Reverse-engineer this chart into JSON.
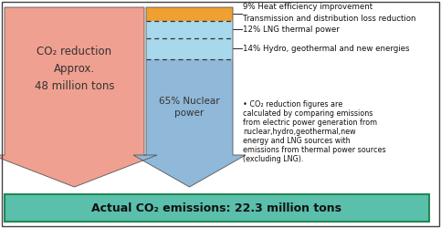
{
  "arrow_left_color": "#F0A090",
  "arrow_right_color": "#90B8D8",
  "bar_heat_color": "#F0A030",
  "bar_hydro_lng_color": "#A8D8EC",
  "bar_nuclear_color": "#90B8D8",
  "bottom_box_facecolor": "#5ABFAB",
  "bottom_box_edgecolor": "#228855",
  "left_arrow_text": "CO₂ reduction\nApprox.\n48 million tons",
  "nuclear_label": "65% Nuclear\npower",
  "label_heat1": "9% Heat efficiency improvement",
  "label_heat2": "Transmission and distribution loss reduction",
  "label_lng": "12% LNG thermal power",
  "label_hydro": "14% Hydro, geothermal and new energies",
  "footnote_line1": "• CO₂ reduction figures are",
  "footnote_line2": "calculated by comparing emissions",
  "footnote_line3": "from electric power generation from",
  "footnote_line4": "nuclear,hydro,geothermal,new",
  "footnote_line5": "energy and LNG sources with",
  "footnote_line6": "emissions from thermal power sources",
  "footnote_line7": "(excluding LNG).",
  "bottom_text": "Actual CO₂ emissions: 22.3 million tons",
  "background_color": "#FFFFFF",
  "outer_border_color": "#555555"
}
